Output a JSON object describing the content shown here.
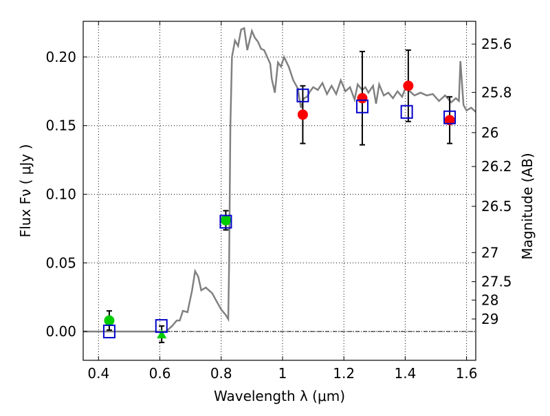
{
  "chart_data": {
    "type": "scatter",
    "xlabel": "Wavelength  λ (μm)",
    "ylabel": "Flux  Fν  ( μJy )",
    "y2label": "Magnitude (AB)",
    "xlim": [
      0.35,
      1.63
    ],
    "ylim": [
      -0.021,
      0.226
    ],
    "grid": true,
    "x_ticks": [
      {
        "value": 0.4,
        "label": "0.4"
      },
      {
        "value": 0.6,
        "label": "0.6"
      },
      {
        "value": 0.8,
        "label": "0.8"
      },
      {
        "value": 1.0,
        "label": "1"
      },
      {
        "value": 1.2,
        "label": "1.2"
      },
      {
        "value": 1.4,
        "label": "1.4"
      },
      {
        "value": 1.6,
        "label": "1.6"
      }
    ],
    "y_ticks": [
      {
        "value": 0.0,
        "label": "0.00"
      },
      {
        "value": 0.05,
        "label": "0.05"
      },
      {
        "value": 0.1,
        "label": "0.10"
      },
      {
        "value": 0.15,
        "label": "0.15"
      },
      {
        "value": 0.2,
        "label": "0.20"
      }
    ],
    "y2_ticks": [
      {
        "flux": 0.2094,
        "label": "25.6"
      },
      {
        "flux": 0.1742,
        "label": "25.8"
      },
      {
        "flux": 0.1449,
        "label": "26"
      },
      {
        "flux": 0.1202,
        "label": "26.2"
      },
      {
        "flux": 0.0912,
        "label": "26.5"
      },
      {
        "flux": 0.0575,
        "label": "27"
      },
      {
        "flux": 0.0363,
        "label": "27.5"
      },
      {
        "flux": 0.0229,
        "label": "28"
      },
      {
        "flux": 0.0091,
        "label": "29"
      }
    ],
    "zero_line": {
      "y": 0.0,
      "color": "#000000",
      "style": "dash-dot"
    },
    "model_spectrum": {
      "color": "#808080",
      "x": [
        0.35,
        0.62,
        0.64,
        0.655,
        0.665,
        0.675,
        0.69,
        0.705,
        0.715,
        0.725,
        0.735,
        0.75,
        0.77,
        0.79,
        0.8,
        0.815,
        0.823,
        0.826,
        0.83,
        0.835,
        0.845,
        0.855,
        0.865,
        0.875,
        0.885,
        0.9,
        0.91,
        0.92,
        0.93,
        0.94,
        0.95,
        0.96,
        0.965,
        0.975,
        0.985,
        0.995,
        1.005,
        1.02,
        1.035,
        1.05,
        1.06,
        1.07,
        1.08,
        1.09,
        1.1,
        1.115,
        1.13,
        1.145,
        1.16,
        1.175,
        1.19,
        1.205,
        1.22,
        1.235,
        1.245,
        1.26,
        1.27,
        1.28,
        1.295,
        1.305,
        1.315,
        1.33,
        1.345,
        1.36,
        1.375,
        1.39,
        1.4,
        1.415,
        1.43,
        1.45,
        1.47,
        1.49,
        1.51,
        1.53,
        1.55,
        1.565,
        1.575,
        1.58,
        1.59,
        1.6,
        1.615,
        1.63
      ],
      "y": [
        0.0,
        0.0,
        0.004,
        0.008,
        0.008,
        0.015,
        0.014,
        0.03,
        0.044,
        0.04,
        0.03,
        0.032,
        0.028,
        0.02,
        0.016,
        0.012,
        0.009,
        0.05,
        0.15,
        0.2,
        0.212,
        0.208,
        0.22,
        0.221,
        0.205,
        0.219,
        0.214,
        0.211,
        0.206,
        0.205,
        0.2,
        0.195,
        0.184,
        0.174,
        0.196,
        0.193,
        0.2,
        0.193,
        0.183,
        0.177,
        0.163,
        0.17,
        0.171,
        0.175,
        0.178,
        0.176,
        0.181,
        0.173,
        0.179,
        0.173,
        0.183,
        0.175,
        0.178,
        0.169,
        0.18,
        0.176,
        0.178,
        0.174,
        0.179,
        0.166,
        0.18,
        0.172,
        0.174,
        0.17,
        0.175,
        0.171,
        0.177,
        0.175,
        0.172,
        0.174,
        0.172,
        0.173,
        0.168,
        0.172,
        0.167,
        0.17,
        0.168,
        0.197,
        0.165,
        0.161,
        0.163,
        0.16
      ]
    },
    "series": [
      {
        "name": "",
        "marker": "circle",
        "color": "#00cc00",
        "points": [
          {
            "x": 0.435,
            "y": 0.008,
            "yerr": 0.007
          },
          {
            "x": 0.815,
            "y": 0.081,
            "yerr": 0.007
          }
        ]
      },
      {
        "name": "",
        "marker": "triangle",
        "color": "#00cc00",
        "points": [
          {
            "x": 0.606,
            "y": -0.002,
            "yerr": 0.006
          }
        ]
      },
      {
        "name": "",
        "marker": "circle",
        "color": "#ff0000",
        "points": [
          {
            "x": 1.066,
            "y": 0.158,
            "yerr": 0.021
          },
          {
            "x": 1.26,
            "y": 0.17,
            "yerr": 0.034
          },
          {
            "x": 1.41,
            "y": 0.179,
            "yerr": 0.026
          },
          {
            "x": 1.545,
            "y": 0.154,
            "yerr": 0.017
          }
        ]
      },
      {
        "name": "",
        "marker": "open-square",
        "color": "#0000cc",
        "points": [
          {
            "x": 0.435,
            "y": 0.0
          },
          {
            "x": 0.605,
            "y": 0.004
          },
          {
            "x": 0.815,
            "y": 0.08
          },
          {
            "x": 1.066,
            "y": 0.172
          },
          {
            "x": 1.26,
            "y": 0.164
          },
          {
            "x": 1.405,
            "y": 0.16
          },
          {
            "x": 1.545,
            "y": 0.156
          }
        ]
      }
    ]
  }
}
